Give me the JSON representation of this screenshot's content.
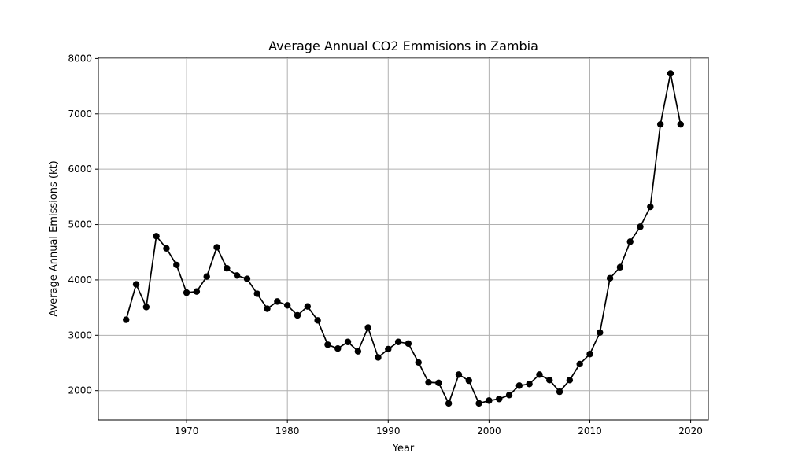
{
  "chart_data": {
    "type": "line",
    "title": "Average Annual CO2 Emmisions in Zambia",
    "xlabel": "Year",
    "ylabel": "Average Annual Emissions (kt)",
    "xlim": [
      1961.25,
      2021.75
    ],
    "ylim": [
      1470,
      8020
    ],
    "xticks": [
      1970,
      1980,
      1990,
      2000,
      2010,
      2020
    ],
    "yticks": [
      2000,
      3000,
      4000,
      5000,
      6000,
      7000,
      8000
    ],
    "grid": true,
    "line_color": "#000000",
    "marker": "circle",
    "series": [
      {
        "x": [
          1964,
          1965,
          1966,
          1967,
          1968,
          1969,
          1970,
          1971,
          1972,
          1973,
          1974,
          1975,
          1976,
          1977,
          1978,
          1979,
          1980,
          1981,
          1982,
          1983,
          1984,
          1985,
          1986,
          1987,
          1988,
          1989,
          1990,
          1991,
          1992,
          1993,
          1994,
          1995,
          1996,
          1997,
          1998,
          1999,
          2000,
          2001,
          2002,
          2003,
          2004,
          2005,
          2006,
          2007,
          2008,
          2009,
          2010,
          2011,
          2012,
          2013,
          2014,
          2015,
          2016,
          2017,
          2018,
          2019
        ],
        "values": [
          3280,
          3920,
          3510,
          4790,
          4570,
          4270,
          3770,
          3790,
          4060,
          4590,
          4210,
          4080,
          4020,
          3750,
          3480,
          3610,
          3540,
          3360,
          3520,
          3270,
          2830,
          2760,
          2880,
          2710,
          3140,
          2600,
          2750,
          2880,
          2850,
          2510,
          2150,
          2140,
          1770,
          2290,
          2180,
          1770,
          1820,
          1850,
          1920,
          2090,
          2120,
          2290,
          2190,
          1980,
          2190,
          2480,
          2660,
          3050,
          4030,
          4230,
          4690,
          4960,
          5320,
          6810,
          7730,
          6810
        ]
      }
    ]
  }
}
